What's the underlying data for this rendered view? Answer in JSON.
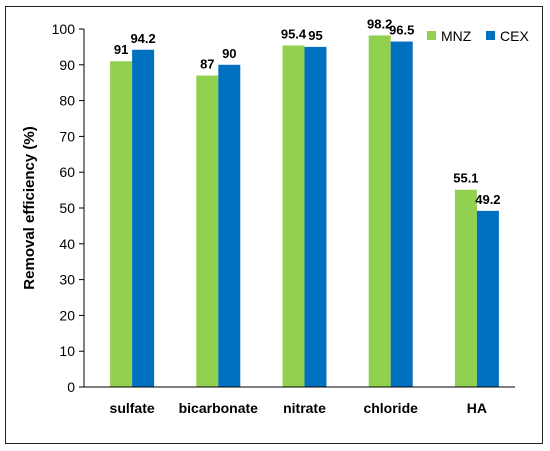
{
  "chart_data": {
    "type": "bar",
    "categories": [
      "sulfate",
      "bicarbonate",
      "nitrate",
      "chloride",
      "HA"
    ],
    "series": [
      {
        "name": "MNZ",
        "values": [
          91,
          87,
          95.4,
          98.2,
          55.1
        ],
        "color": "#92d050"
      },
      {
        "name": "CEX",
        "values": [
          94.2,
          90,
          95,
          96.5,
          49.2
        ],
        "color": "#0070c0"
      }
    ],
    "data_labels": [
      [
        "91",
        "87",
        "95.4",
        "98.2",
        "55.1"
      ],
      [
        "94.2",
        "90",
        "95",
        "96.5",
        "49.2"
      ]
    ],
    "ylabel": "Removal efficiency (%)",
    "ylim": [
      0,
      100
    ],
    "yticks": [
      0,
      10,
      20,
      30,
      40,
      50,
      60,
      70,
      80,
      90,
      100
    ],
    "grid": false,
    "legend_position": "top-right"
  }
}
